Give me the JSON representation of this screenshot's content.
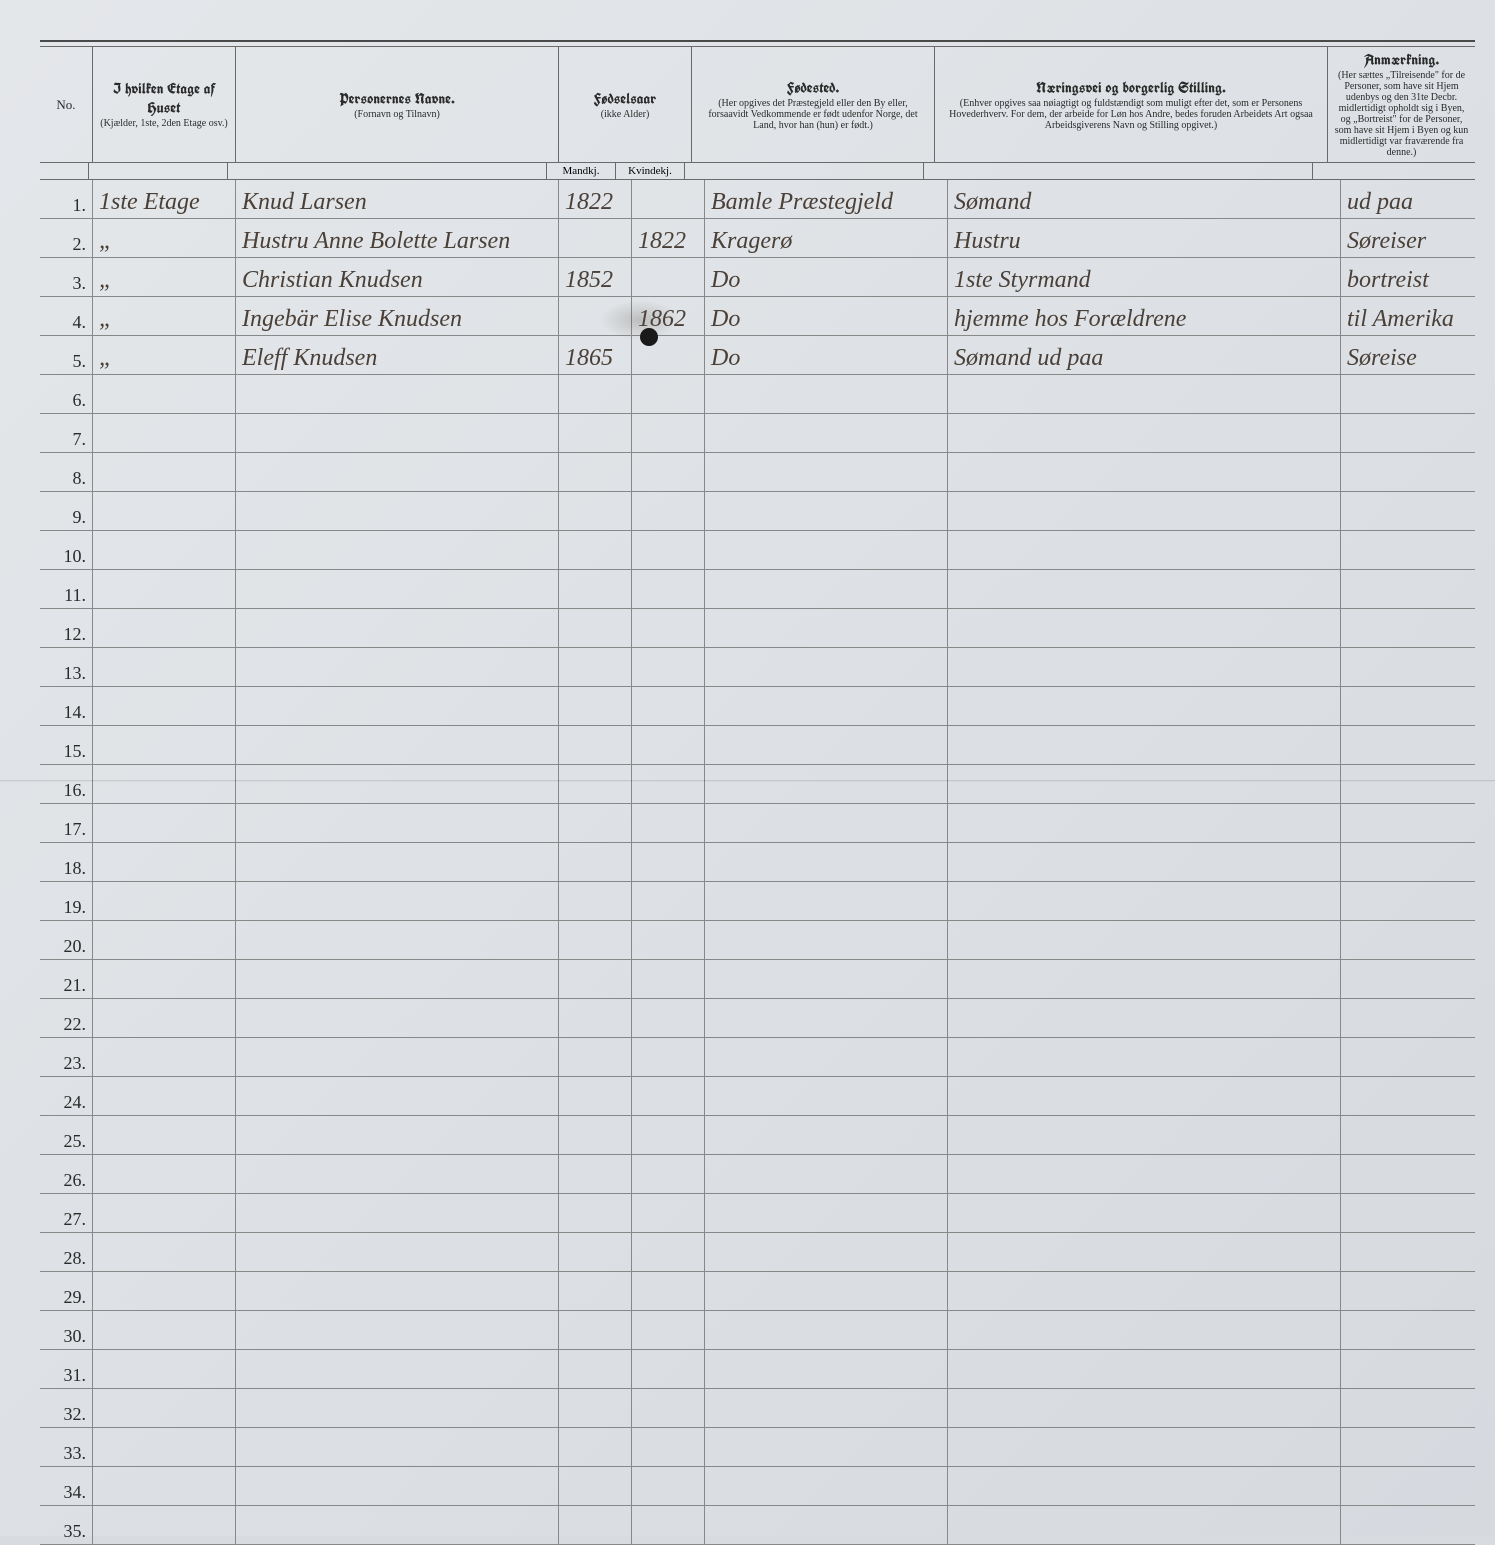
{
  "headers": {
    "no": "No.",
    "etage_title": "I hvilken Etage af Huset",
    "etage_sub": "(Kjælder, 1ste, 2den Etage osv.)",
    "name_title": "Personernes Navne.",
    "name_sub": "(Fornavn og Tilnavn)",
    "birth_title": "Fødselsaar",
    "birth_sub": "(ikke Alder)",
    "birth_m": "Mandkj.",
    "birth_f": "Kvindekj.",
    "birthplace_title": "Fødested.",
    "birthplace_sub": "(Her opgives det Præstegjeld eller den By eller, forsaavidt Vedkommende er født udenfor Norge, det Land, hvor han (hun) er født.)",
    "occupation_title": "Næringsvei og borgerlig Stilling.",
    "occupation_sub": "(Enhver opgives saa nøiagtigt og fuldstændigt som muligt efter det, som er Personens Hovederhverv. For dem, der arbeide for Løn hos Andre, bedes foruden Arbeidets Art ogsaa Arbeidsgiverens Navn og Stilling opgivet.)",
    "remark_title": "Anmærkning.",
    "remark_sub": "(Her sættes „Tilreisende\" for de Personer, som have sit Hjem udenbys og den 31te Decbr. midlertidigt opholdt sig i Byen, og „Bortreist\" for de Personer, som have sit Hjem i Byen og kun midlertidigt var fraværende fra denne.)"
  },
  "rows": [
    {
      "no": "1.",
      "etage": "1ste Etage",
      "name": "Knud Larsen",
      "birth_m": "1822",
      "birth_f": "",
      "birthplace": "Bamle Præstegjeld",
      "occupation": "Sømand",
      "remark": "ud paa"
    },
    {
      "no": "2.",
      "etage": "„",
      "name": "Hustru Anne Bolette Larsen",
      "birth_m": "",
      "birth_f": "1822",
      "birthplace": "Kragerø",
      "occupation": "Hustru",
      "remark": "Søreiser"
    },
    {
      "no": "3.",
      "etage": "„",
      "name": "Christian Knudsen",
      "birth_m": "1852",
      "birth_f": "",
      "birthplace": "Do",
      "occupation": "1ste Styrmand",
      "remark": "bortreist"
    },
    {
      "no": "4.",
      "etage": "„",
      "name": "Ingebär Elise Knudsen",
      "birth_m": "",
      "birth_f": "1862",
      "birthplace": "Do",
      "occupation": "hjemme hos Forældrene",
      "remark": "til Amerika"
    },
    {
      "no": "5.",
      "etage": "„",
      "name": "Eleff Knudsen",
      "birth_m": "1865",
      "birth_f": "",
      "birthplace": "Do",
      "occupation": "Sømand   ud paa",
      "remark": "Søreise"
    },
    {
      "no": "6."
    },
    {
      "no": "7."
    },
    {
      "no": "8."
    },
    {
      "no": "9."
    },
    {
      "no": "10."
    },
    {
      "no": "11."
    },
    {
      "no": "12."
    },
    {
      "no": "13."
    },
    {
      "no": "14."
    },
    {
      "no": "15."
    },
    {
      "no": "16."
    },
    {
      "no": "17."
    },
    {
      "no": "18."
    },
    {
      "no": "19."
    },
    {
      "no": "20."
    },
    {
      "no": "21."
    },
    {
      "no": "22."
    },
    {
      "no": "23."
    },
    {
      "no": "24."
    },
    {
      "no": "25."
    },
    {
      "no": "26."
    },
    {
      "no": "27."
    },
    {
      "no": "28."
    },
    {
      "no": "29."
    },
    {
      "no": "30."
    },
    {
      "no": "31."
    },
    {
      "no": "32."
    },
    {
      "no": "33."
    },
    {
      "no": "34."
    },
    {
      "no": "35."
    }
  ],
  "colors": {
    "page_bg": "#dde1e5",
    "rule": "#6a6a6a",
    "ink": "#4a4038"
  }
}
